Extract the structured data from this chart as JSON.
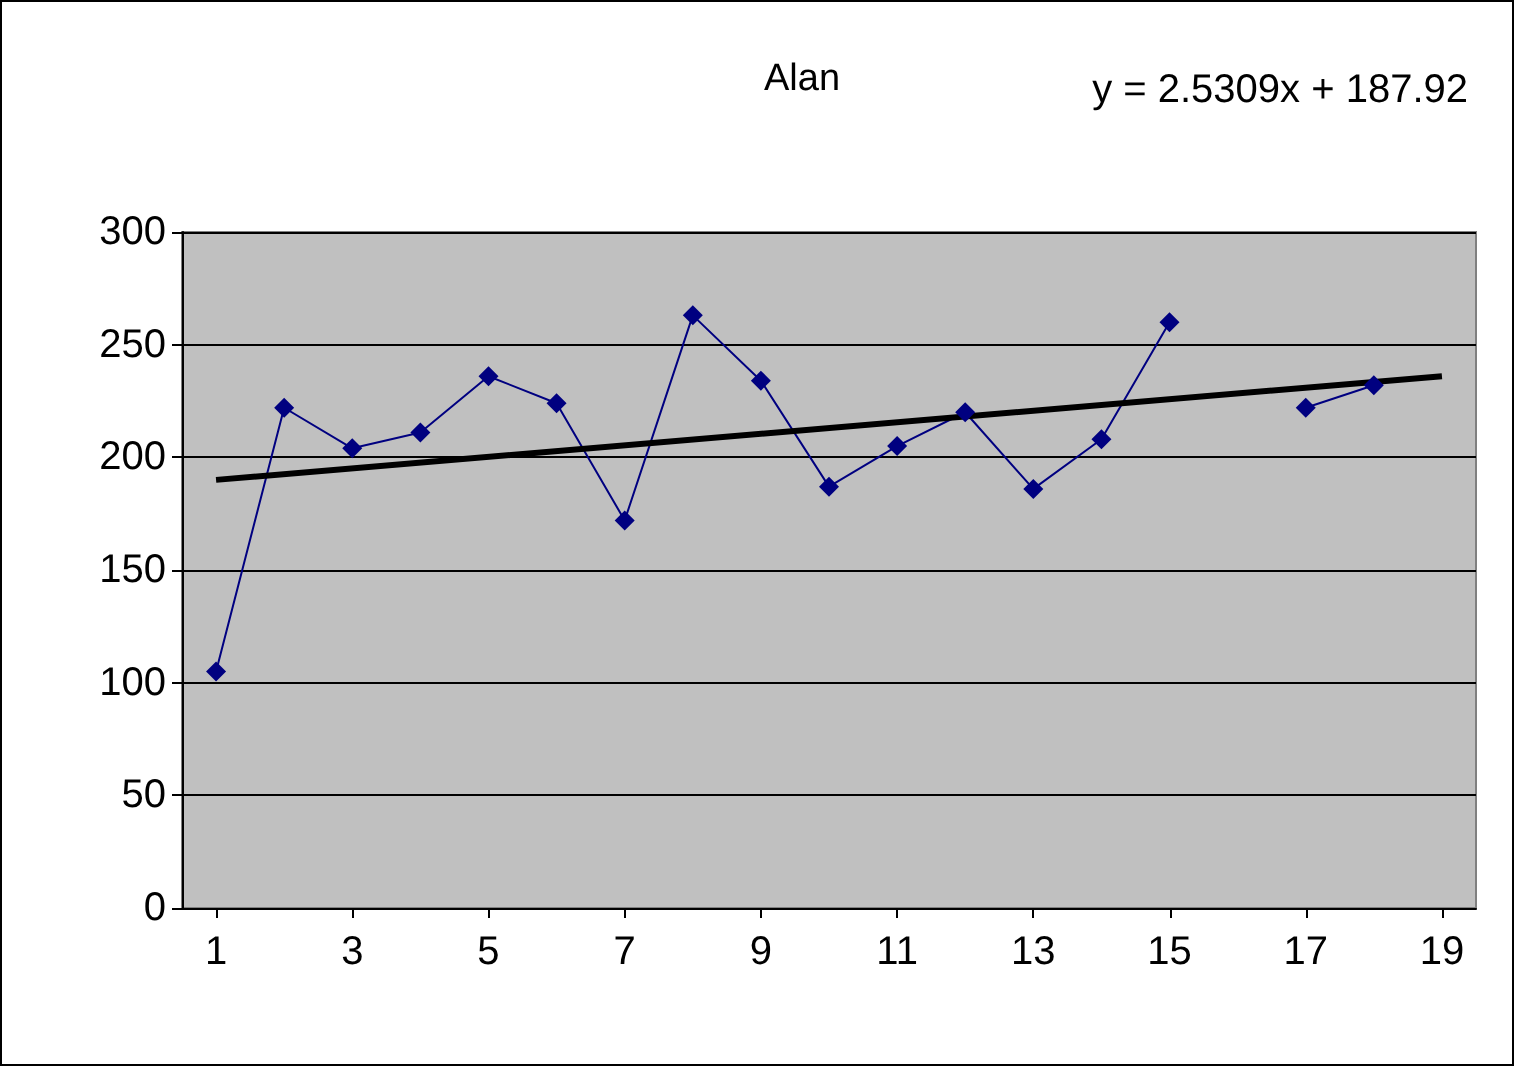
{
  "chart_data": {
    "type": "line",
    "title": "Alan",
    "annotations": [
      "y = 2.5309x + 187.92"
    ],
    "x": [
      1,
      2,
      3,
      4,
      5,
      6,
      7,
      8,
      9,
      10,
      11,
      12,
      13,
      14,
      15,
      16,
      17,
      18
    ],
    "series": [
      {
        "color": "#000080",
        "marker": "diamond",
        "values": [
          105,
          222,
          204,
          211,
          236,
          224,
          172,
          263,
          234,
          187,
          205,
          220,
          186,
          208,
          260,
          null,
          222,
          232
        ]
      },
      {
        "type": "line",
        "color": "#000000",
        "marker": "none",
        "x": [
          1,
          19
        ],
        "values": [
          190,
          236
        ]
      }
    ],
    "xlim": [
      0.5,
      19.5
    ],
    "xticks": [
      1,
      3,
      5,
      7,
      9,
      11,
      13,
      15,
      17,
      19
    ],
    "ylim": [
      0,
      300
    ],
    "yticks": [
      0,
      50,
      100,
      150,
      200,
      250,
      300
    ],
    "grid": "y"
  }
}
